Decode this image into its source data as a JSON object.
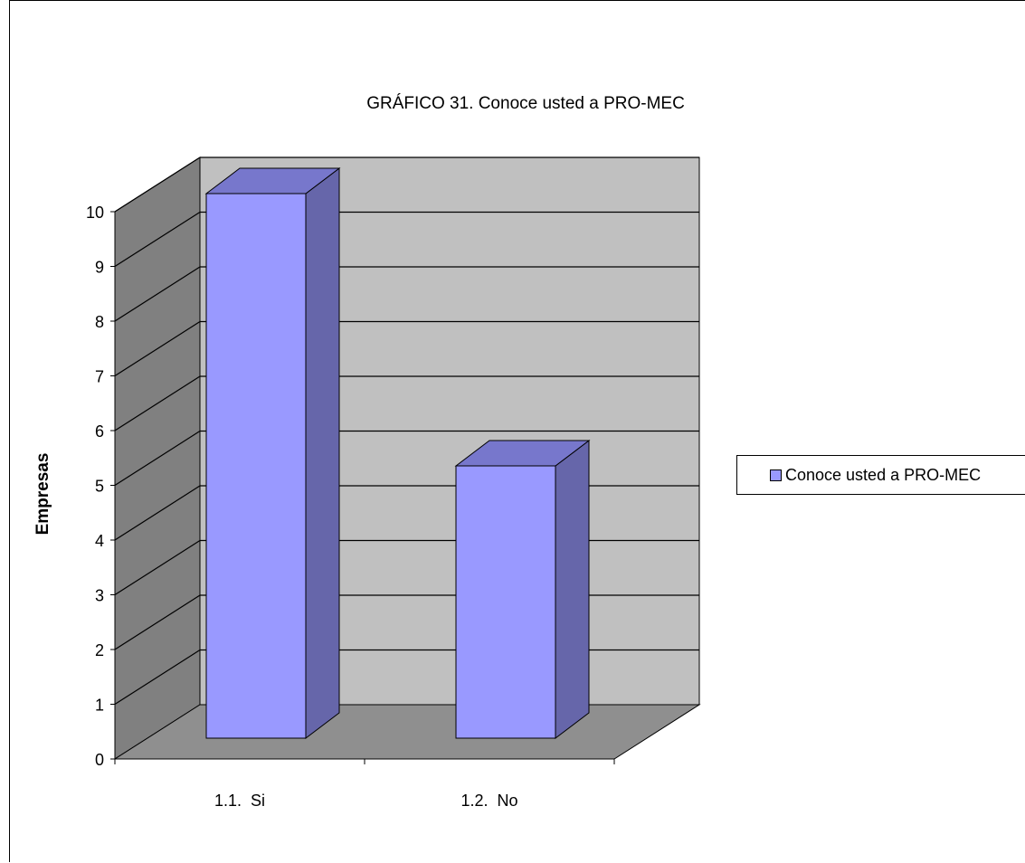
{
  "chart_data": {
    "type": "bar",
    "title": "GRÁFICO 31. Conoce usted a PRO-MEC",
    "xlabel": "",
    "ylabel": "Empresas",
    "categories": [
      "1.1.  Si",
      "1.2.  No"
    ],
    "series": [
      {
        "name": "Conoce usted a PRO-MEC",
        "values": [
          10,
          5
        ]
      }
    ],
    "ylim": [
      0,
      10
    ],
    "yticks": [
      "0",
      "1",
      "2",
      "3",
      "4",
      "5",
      "6",
      "7",
      "8",
      "9",
      "10"
    ],
    "grid": true,
    "legend": "right",
    "three_d": true
  },
  "colors": {
    "bar_front": "#9999ff",
    "bar_side": "#6666aa",
    "bar_top": "#7777cc",
    "back_wall": "#c0c0c0",
    "side_wall": "#808080",
    "floor": "#8f8f8f"
  }
}
